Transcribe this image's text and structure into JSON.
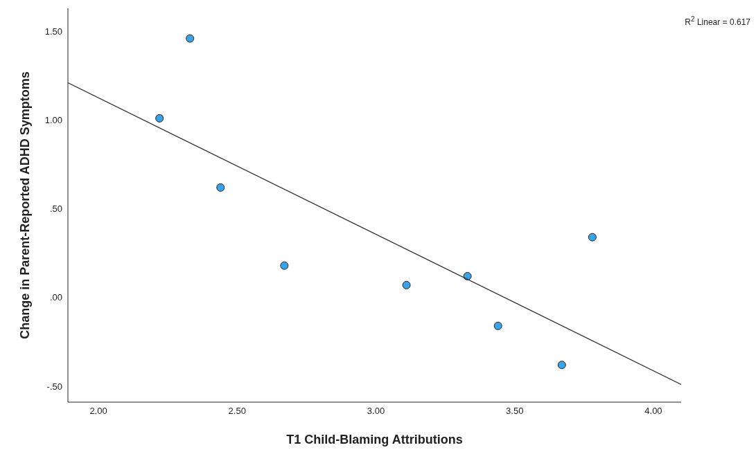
{
  "chart_data": {
    "type": "scatter",
    "xlabel": "T1 Child-Blaming Attributions",
    "ylabel": "Change in Parent-Reported ADHD Symptoms",
    "annotations": [
      "R$^{2}$ Linear = 0.617"
    ],
    "xlim": [
      1.89,
      4.1
    ],
    "xticks": [
      {
        "value": 2,
        "label": "2.00"
      },
      {
        "value": 2.5,
        "label": "2.50"
      },
      {
        "value": 3,
        "label": "3.00"
      },
      {
        "value": 3.5,
        "label": "3.50"
      },
      {
        "value": 4,
        "label": "4.00"
      }
    ],
    "ylim": [
      -0.59,
      1.63
    ],
    "yticks": [
      {
        "value": -0.5,
        "label": "-.50"
      },
      {
        "value": 0,
        "label": ".00"
      },
      {
        "value": 0.5,
        "label": ".50"
      },
      {
        "value": 1,
        "label": "1.00"
      },
      {
        "value": 1.5,
        "label": "1.50"
      }
    ],
    "grid": false,
    "series": [
      {
        "type": "scatter",
        "color": "#3aa3e8",
        "marker": "circle",
        "x": [
          2.22,
          2.33,
          2.44,
          2.67,
          3.11,
          3.33,
          3.44,
          3.67,
          3.78
        ],
        "values": [
          1.01,
          1.46,
          0.62,
          0.18,
          0.07,
          0.12,
          -0.16,
          -0.38,
          0.34
        ]
      },
      {
        "type": "line",
        "color": "#333333",
        "marker": "none",
        "line_style": "solid",
        "x": [
          1.89,
          4.1
        ],
        "values": [
          1.21,
          -0.49
        ]
      }
    ]
  }
}
